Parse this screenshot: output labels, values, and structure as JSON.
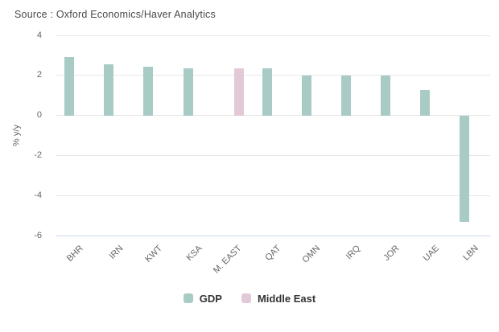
{
  "chart_data": {
    "type": "bar",
    "source": "Source : Oxford Economics/Haver Analytics",
    "categories": [
      "BHR",
      "IRN",
      "KWT",
      "KSA",
      "M. EAST",
      "QAT",
      "OMN",
      "IRQ",
      "JOR",
      "UAE",
      "LBN"
    ],
    "series": [
      {
        "name": "GDP",
        "color": "#a8ccc5",
        "values": [
          2.9,
          2.55,
          2.45,
          2.35,
          null,
          2.35,
          2.0,
          2.0,
          2.0,
          1.25,
          -5.3
        ]
      },
      {
        "name": "Middle East",
        "color": "#e3c9d7",
        "values": [
          null,
          null,
          null,
          null,
          2.35,
          null,
          null,
          null,
          null,
          null,
          null
        ]
      }
    ],
    "xlabel": "",
    "ylabel": "% y/y",
    "yticks": [
      4,
      2,
      0,
      -2,
      -4,
      -6
    ],
    "ylim": [
      -6,
      4
    ],
    "grid": true,
    "legend_position": "bottom-center"
  },
  "colors": {
    "background": "#ffffff",
    "gridline": "#e6e6e6",
    "axis_line": "#ccd6eb",
    "tick_text": "#666666",
    "source_text": "#4a4a4a",
    "legend_text": "#333333"
  }
}
